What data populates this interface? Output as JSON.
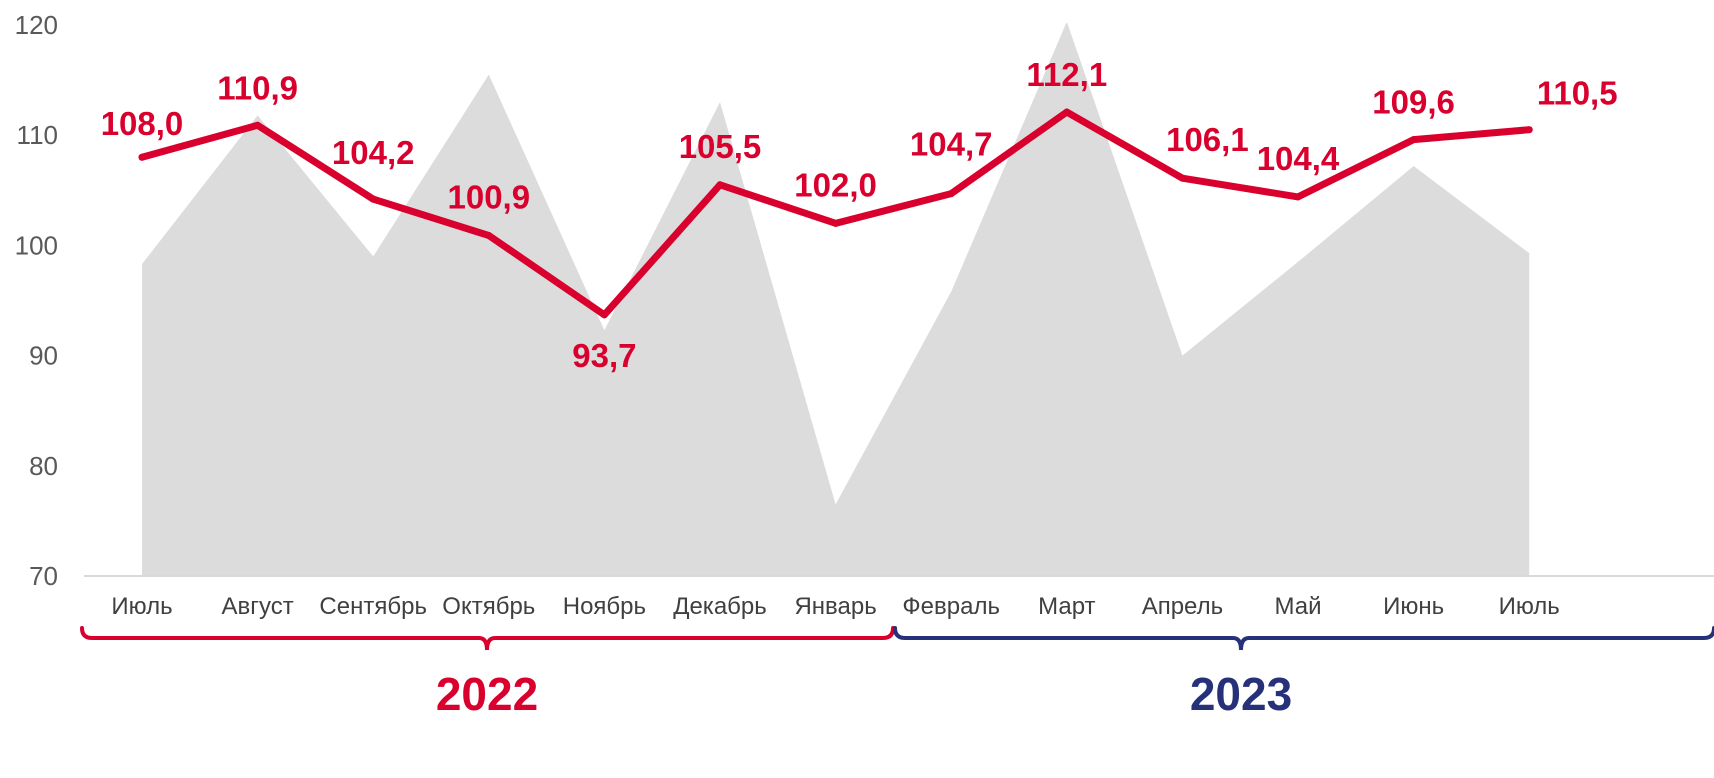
{
  "chart_data": {
    "type": "line",
    "categories": [
      "Июль",
      "Август",
      "Сентябрь",
      "Октябрь",
      "Ноябрь",
      "Декабрь",
      "Январь",
      "Февраль",
      "Март",
      "Апрель",
      "Май",
      "Июнь",
      "Июль"
    ],
    "series": [
      {
        "type": "area",
        "values": [
          98.3,
          111.8,
          99.0,
          115.5,
          92.3,
          113.0,
          76.5,
          95.8,
          120.3,
          90.0,
          98.5,
          107.2,
          99.3
        ],
        "color": "#dcdcdc"
      },
      {
        "type": "line",
        "values": [
          108.0,
          110.9,
          104.2,
          100.9,
          93.7,
          105.5,
          102.0,
          104.7,
          112.1,
          106.1,
          104.4,
          109.6,
          110.5
        ],
        "labels": [
          "108,0",
          "110,9",
          "104,2",
          "100,9",
          "93,7",
          "105,5",
          "102,0",
          "104,7",
          "112,1",
          "106,1",
          "104,4",
          "109,6",
          "110,5"
        ],
        "color": "#d9002e"
      }
    ],
    "yticks": [
      "70",
      "80",
      "90",
      "100",
      "110",
      "120"
    ],
    "ylim": [
      70,
      120
    ],
    "grid": false,
    "year_groups": [
      {
        "label": "2022",
        "start": 0,
        "end": 6,
        "color": "#d9002e"
      },
      {
        "label": "2023",
        "start": 7,
        "end": 12,
        "color": "#26317a"
      }
    ]
  }
}
